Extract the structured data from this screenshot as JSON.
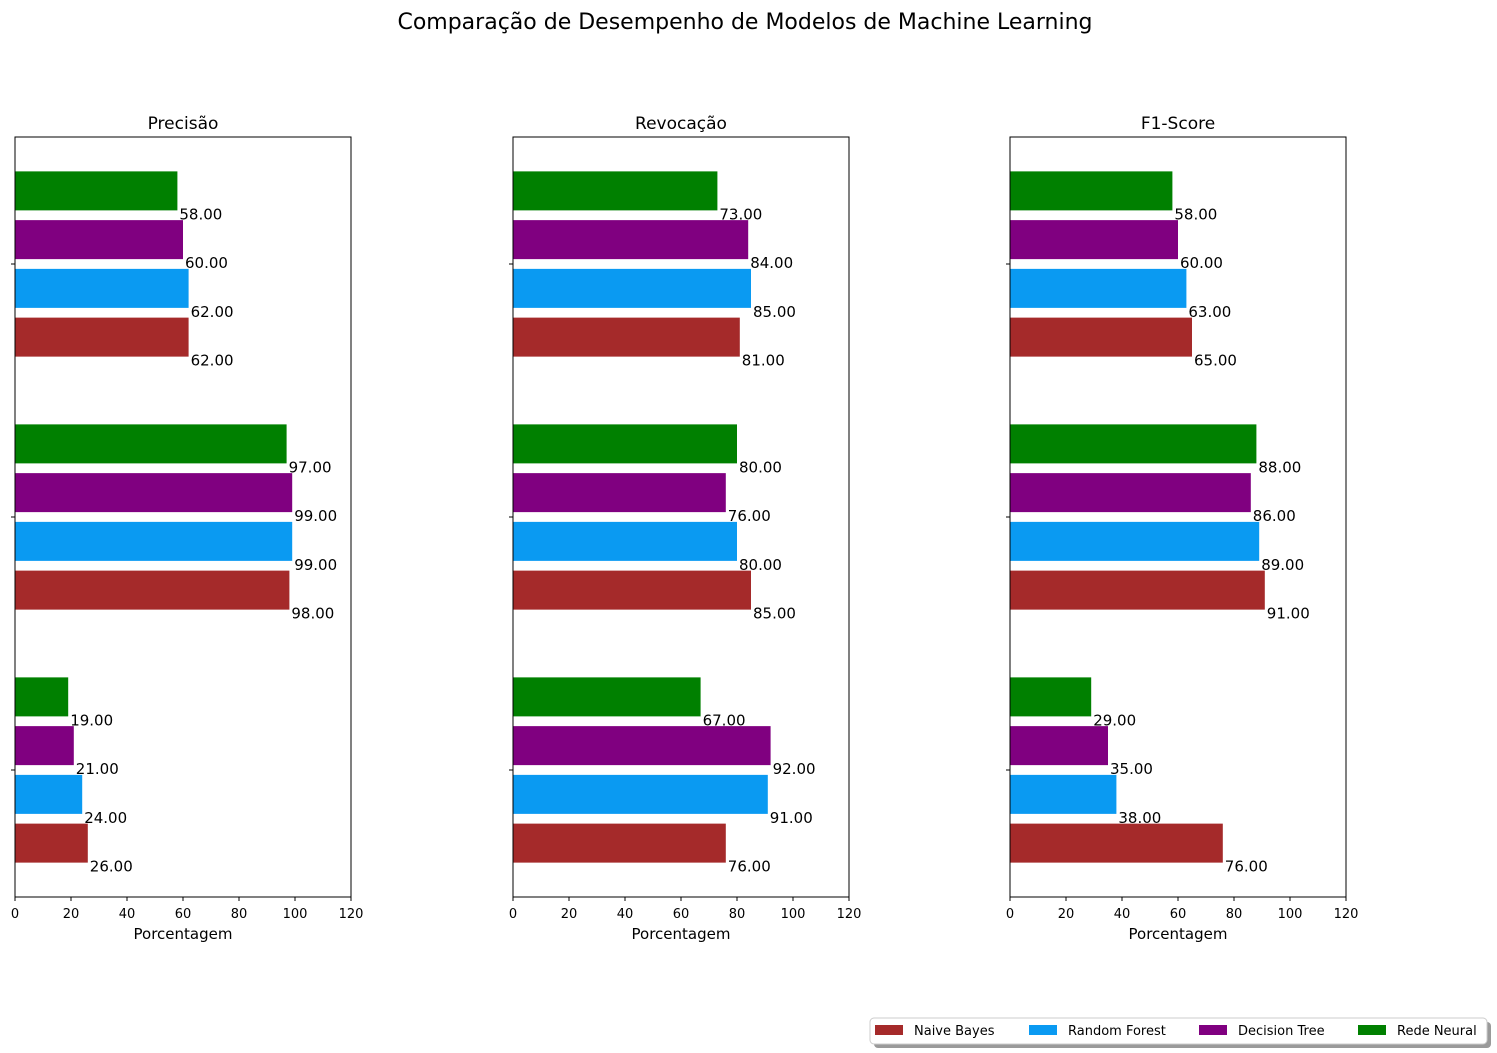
{
  "figure": {
    "suptitle": "Comparação de Desempenho de Modelos de Machine Learning"
  },
  "legend": {
    "placement": "bottom-right",
    "entries": [
      {
        "name": "Naive Bayes",
        "color": "#a52a2a"
      },
      {
        "name": "Random Forest",
        "color": "#0a9af2"
      },
      {
        "name": "Decision Tree",
        "color": "#800080"
      },
      {
        "name": "Rede Neural",
        "color": "#008000"
      }
    ]
  },
  "chart_data": [
    {
      "type": "bar",
      "orientation": "horizontal",
      "title": "Precisão",
      "xlabel": "Porcentagem",
      "ylabel": "",
      "xlim": [
        0,
        120
      ],
      "xticks": [
        0,
        20,
        40,
        60,
        80,
        100,
        120
      ],
      "grid": false,
      "data_label_format": "2 decimals",
      "series": [
        {
          "name": "Naive Bayes",
          "values": [
            26,
            98,
            62
          ]
        },
        {
          "name": "Random Forest",
          "values": [
            24,
            99,
            62
          ]
        },
        {
          "name": "Decision Tree",
          "values": [
            21,
            99,
            60
          ]
        },
        {
          "name": "Rede Neural",
          "values": [
            19,
            97,
            58
          ]
        }
      ]
    },
    {
      "type": "bar",
      "orientation": "horizontal",
      "title": "Revocação",
      "xlabel": "Porcentagem",
      "ylabel": "",
      "xlim": [
        0,
        120
      ],
      "xticks": [
        0,
        20,
        40,
        60,
        80,
        100,
        120
      ],
      "grid": false,
      "data_label_format": "2 decimals",
      "series": [
        {
          "name": "Naive Bayes",
          "values": [
            76,
            85,
            81
          ]
        },
        {
          "name": "Random Forest",
          "values": [
            91,
            80,
            85
          ]
        },
        {
          "name": "Decision Tree",
          "values": [
            92,
            76,
            84
          ]
        },
        {
          "name": "Rede Neural",
          "values": [
            67,
            80,
            73
          ]
        }
      ]
    },
    {
      "type": "bar",
      "orientation": "horizontal",
      "title": "F1-Score",
      "xlabel": "Porcentagem",
      "ylabel": "",
      "xlim": [
        0,
        120
      ],
      "xticks": [
        0,
        20,
        40,
        60,
        80,
        100,
        120
      ],
      "grid": false,
      "data_label_format": "2 decimals",
      "series": [
        {
          "name": "Naive Bayes",
          "values": [
            76,
            91,
            65
          ]
        },
        {
          "name": "Random Forest",
          "values": [
            38,
            89,
            63
          ]
        },
        {
          "name": "Decision Tree",
          "values": [
            35,
            86,
            60
          ]
        },
        {
          "name": "Rede Neural",
          "values": [
            29,
            88,
            58
          ]
        }
      ]
    }
  ]
}
